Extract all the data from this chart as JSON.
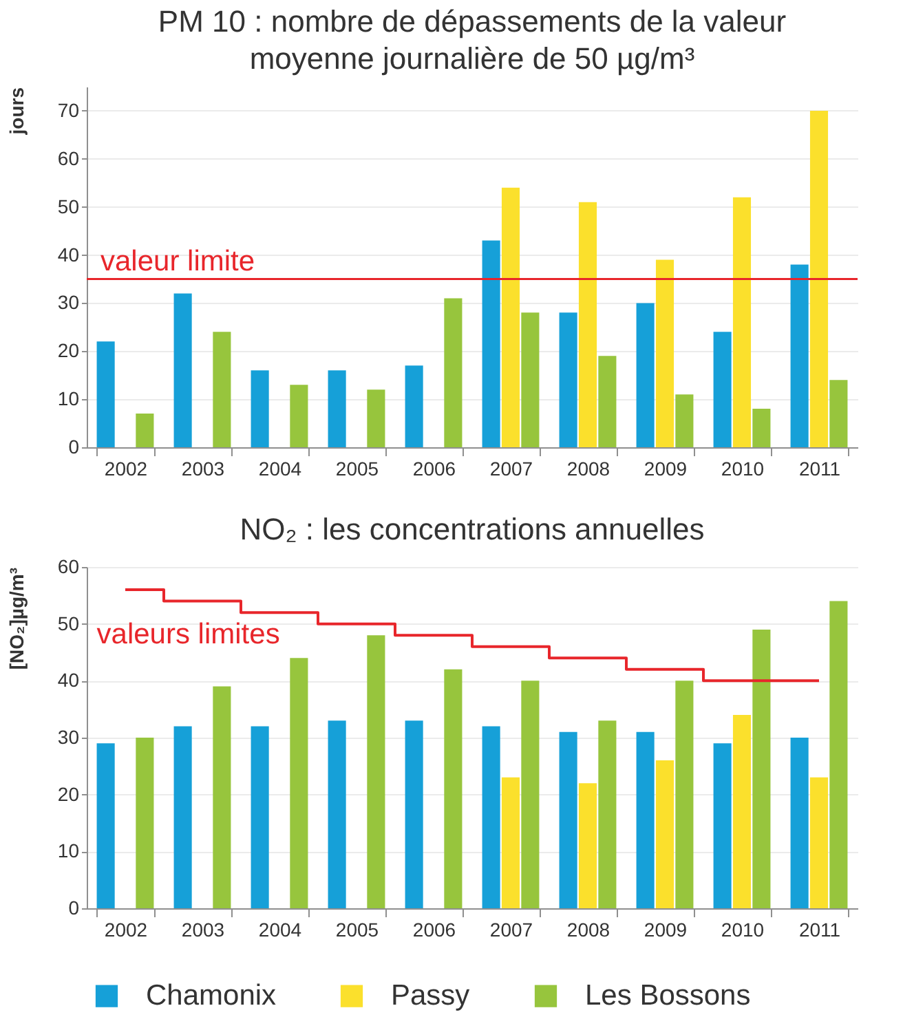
{
  "chart_data": [
    {
      "type": "bar",
      "title": "PM 10 : nombre de dépassements de la valeur\nmoyenne journalière de 50 µg/m³",
      "ylabel": "jours",
      "categories": [
        "2002",
        "2003",
        "2004",
        "2005",
        "2006",
        "2007",
        "2008",
        "2009",
        "2010",
        "2011"
      ],
      "series": [
        {
          "name": "Chamonix",
          "color": "#16a0d8",
          "values": [
            22,
            32,
            16,
            16,
            17,
            43,
            28,
            30,
            24,
            38
          ]
        },
        {
          "name": "Passy",
          "color": "#fbe02c",
          "values": [
            null,
            null,
            null,
            null,
            null,
            54,
            51,
            39,
            52,
            70
          ]
        },
        {
          "name": "Les Bossons",
          "color": "#97c53d",
          "values": [
            7,
            24,
            13,
            12,
            31,
            28,
            19,
            11,
            8,
            14
          ]
        }
      ],
      "ylim": [
        0,
        75
      ],
      "yticks": [
        0,
        10,
        20,
        30,
        40,
        50,
        60,
        70
      ],
      "grid": "y",
      "legend": "bottom",
      "ref_lines": [
        {
          "axis": "y",
          "value": 35,
          "label": "valeur limite",
          "color": "#e8262b"
        }
      ]
    },
    {
      "type": "bar",
      "title": "NO₂ : les concentrations annuelles",
      "ylabel": "[NO₂]µg/m³",
      "categories": [
        "2002",
        "2003",
        "2004",
        "2005",
        "2006",
        "2007",
        "2008",
        "2009",
        "2010",
        "2011"
      ],
      "series": [
        {
          "name": "Chamonix",
          "color": "#16a0d8",
          "values": [
            29,
            32,
            32,
            33,
            33,
            32,
            31,
            31,
            29,
            30
          ]
        },
        {
          "name": "Passy",
          "color": "#fbe02c",
          "values": [
            null,
            null,
            null,
            null,
            null,
            23,
            22,
            26,
            34,
            23
          ]
        },
        {
          "name": "Les Bossons",
          "color": "#97c53d",
          "values": [
            30,
            39,
            44,
            48,
            42,
            40,
            33,
            40,
            49,
            54
          ]
        },
        {
          "type": "step",
          "color": "#e8262b",
          "values": [
            56,
            54,
            52,
            50,
            48,
            46,
            44,
            42,
            40,
            40
          ]
        }
      ],
      "annotations": [
        {
          "text": "valeurs limites",
          "x": "2002",
          "y": 56
        }
      ],
      "ylim": [
        0,
        60
      ],
      "yticks": [
        0,
        10,
        20,
        30,
        40,
        50,
        60
      ],
      "grid": "y",
      "legend": "bottom"
    }
  ]
}
